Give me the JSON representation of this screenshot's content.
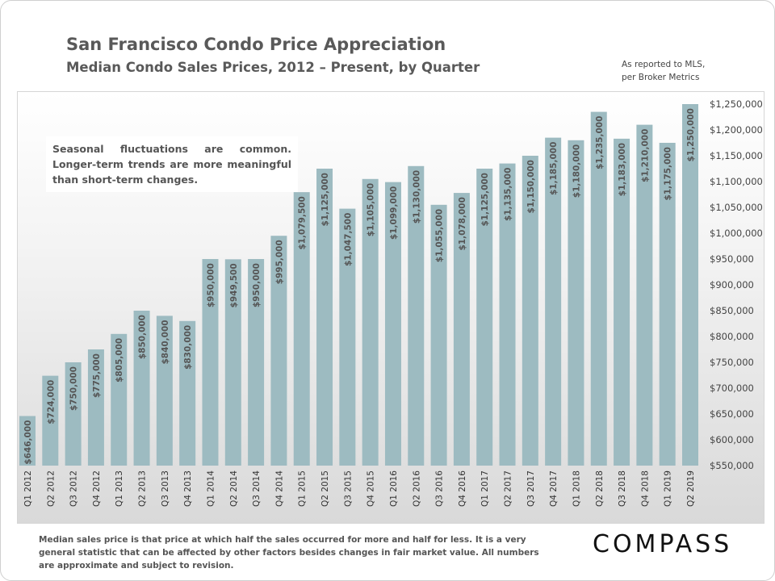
{
  "title": "San Francisco Condo Price Appreciation",
  "subtitle": "Median Condo Sales Prices, 2012 – Present, by Quarter",
  "source": [
    "As reported to MLS,",
    "per Broker Metrics"
  ],
  "note": "Seasonal fluctuations are common. Longer-term trends are more meaningful than short-term changes.",
  "footer": "Median sales price is that price at which half the sales occurred for more and half for less. It is a very general statistic that can be affected by other factors besides changes in fair market value. All numbers are approximate and subject to revision.",
  "logo": "COMPASS",
  "colors": {
    "bar": "#9dbbc1",
    "text": "#595959"
  },
  "chart_data": {
    "type": "bar",
    "title": "San Francisco Condo Price Appreciation",
    "subtitle": "Median Condo Sales Prices, 2012 – Present, by Quarter",
    "categories": [
      "Q1 2012",
      "Q2 2012",
      "Q3 2012",
      "Q4 2012",
      "Q1 2013",
      "Q2 2013",
      "Q3 2013",
      "Q4 2013",
      "Q1 2014",
      "Q2 2014",
      "Q3 2014",
      "Q4 2014",
      "Q1 2015",
      "Q2 2015",
      "Q3 2015",
      "Q4 2015",
      "Q1 2016",
      "Q2 2016",
      "Q3 2016",
      "Q4 2016",
      "Q1 2017",
      "Q2 2017",
      "Q3 2017",
      "Q4 2017",
      "Q1 2018",
      "Q2 2018",
      "Q3 2018",
      "Q4 2018",
      "Q1 2019",
      "Q2 2019"
    ],
    "values": [
      646000,
      724000,
      750000,
      775000,
      805000,
      850000,
      840000,
      830000,
      950000,
      949500,
      950000,
      995000,
      1079500,
      1125000,
      1047500,
      1105000,
      1099000,
      1130000,
      1055000,
      1078000,
      1125000,
      1135000,
      1150000,
      1185000,
      1180000,
      1235000,
      1183000,
      1210000,
      1175000,
      1250000
    ],
    "data_labels": [
      "$646,000",
      "$724,000",
      "$750,000",
      "$775,000",
      "$805,000",
      "$850,000",
      "$840,000",
      "$830,000",
      "$950,000",
      "$949,500",
      "$950,000",
      "$995,000",
      "$1,079,500",
      "$1,125,000",
      "$1,047,500",
      "$1,105,000",
      "$1,099,000",
      "$1,130,000",
      "$1,055,000",
      "$1,078,000",
      "$1,125,000",
      "$1,135,000",
      "$1,150,000",
      "$1,185,000",
      "$1,180,000",
      "$1,235,000",
      "$1,183,000",
      "$1,210,000",
      "$1,175,000",
      "$1,250,000"
    ],
    "ylim": [
      550000,
      1250000
    ],
    "yticks": [
      550000,
      600000,
      650000,
      700000,
      750000,
      800000,
      850000,
      900000,
      950000,
      1000000,
      1050000,
      1100000,
      1150000,
      1200000,
      1250000
    ],
    "ytick_labels": [
      "$550,000",
      "$600,000",
      "$650,000",
      "$700,000",
      "$750,000",
      "$800,000",
      "$850,000",
      "$900,000",
      "$950,000",
      "$1,000,000",
      "$1,050,000",
      "$1,100,000",
      "$1,150,000",
      "$1,200,000",
      "$1,250,000"
    ],
    "y_axis_side": "right",
    "grid": false
  }
}
